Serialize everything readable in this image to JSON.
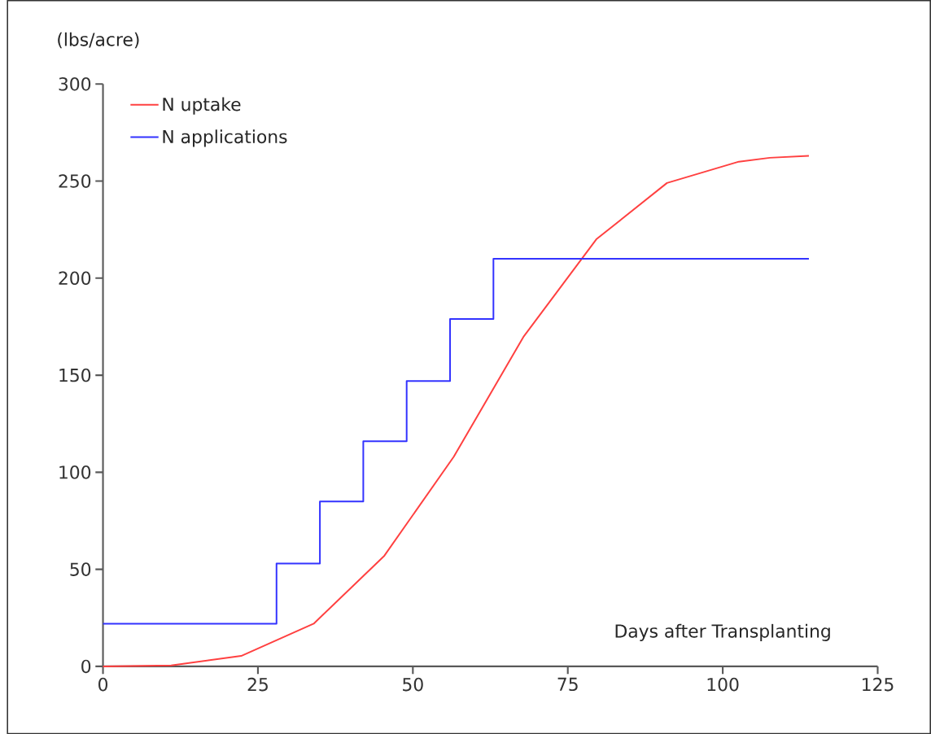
{
  "chart_data": {
    "type": "line",
    "xlabel": "Days after Transplanting",
    "ylabel": "(lbs/acre)",
    "xlim": [
      0,
      125
    ],
    "xticks": [
      0,
      25,
      50,
      75,
      100,
      125
    ],
    "ylim": [
      0,
      300
    ],
    "yticks": [
      0,
      50,
      100,
      150,
      200,
      250,
      300
    ],
    "legend": "top left",
    "series": [
      {
        "name": "N uptake",
        "color": "#ff4040",
        "x": [
          0,
          11,
          22.3,
          34,
          45.4,
          56.6,
          67.9,
          79.6,
          91,
          102.6,
          107.6,
          113.9
        ],
        "values": [
          0,
          0.5,
          5.4,
          22,
          57,
          108,
          170,
          220,
          249,
          260,
          262,
          263
        ]
      },
      {
        "name": "N applications",
        "type": "step",
        "color": "#3333ff",
        "x": [
          0,
          28,
          35,
          42,
          49,
          56,
          63,
          113.9
        ],
        "values": [
          22,
          53,
          85,
          116,
          147,
          179,
          210,
          210
        ]
      }
    ]
  }
}
